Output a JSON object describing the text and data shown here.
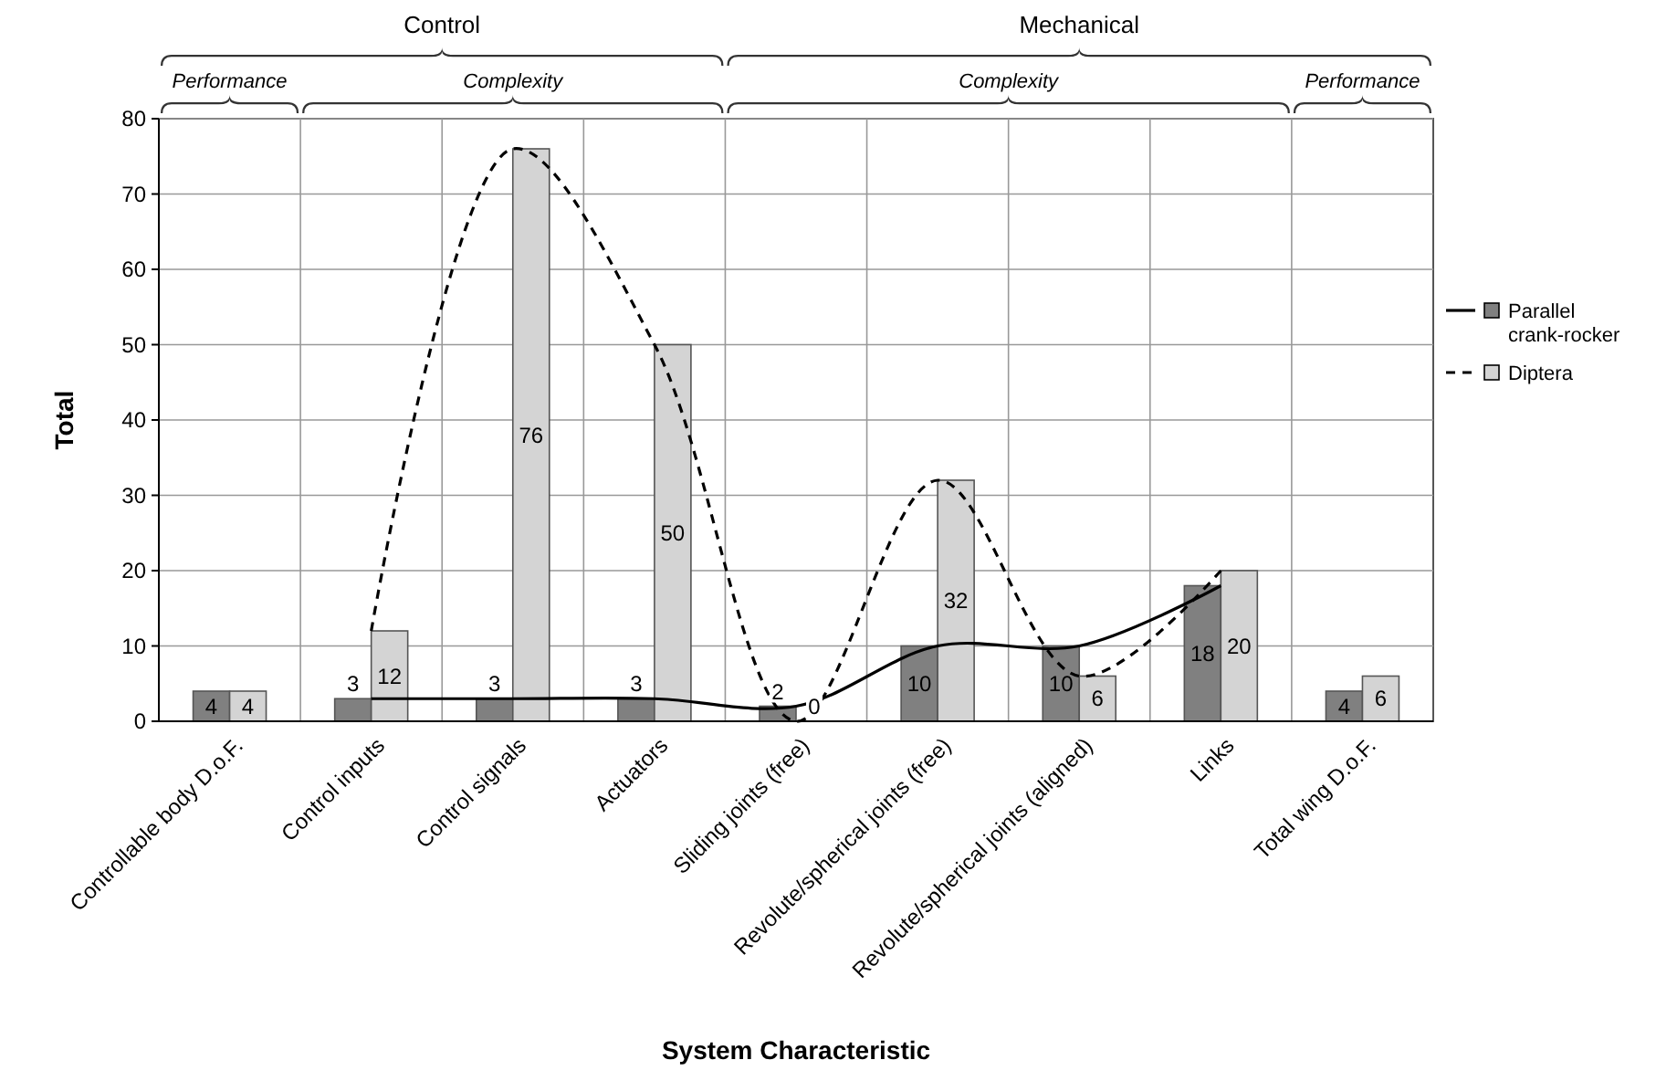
{
  "chart_data": {
    "type": "bar",
    "xlabel": "System Characteristic",
    "ylabel": "Total",
    "categories": [
      "Controllable body D.o.F.",
      "Control inputs",
      "Control signals",
      "Actuators",
      "Sliding joints (free)",
      "Revolute/spherical joints (free)",
      "Revolute/spherical joints (aligned)",
      "Links",
      "Total wing D.o.F."
    ],
    "series": [
      {
        "name": "Parallel crank-rocker",
        "color": "#808080",
        "values": [
          4,
          3,
          3,
          3,
          2,
          10,
          10,
          18,
          4
        ],
        "value_labels": [
          "4",
          "3",
          "3",
          "3",
          "2",
          "10",
          "10",
          "18",
          "4"
        ]
      },
      {
        "name": "Diptera",
        "color": "#d4d4d4",
        "values": [
          4,
          12,
          76,
          50,
          0,
          32,
          6,
          20,
          6
        ],
        "value_labels": [
          "4",
          "12",
          "76",
          "50",
          "0",
          "32",
          "6",
          "20",
          "6"
        ]
      },
      {
        "type": "line",
        "color": "#000000",
        "line_style": "solid",
        "values": [
          null,
          3,
          3,
          3,
          2,
          10,
          10,
          18,
          null
        ]
      },
      {
        "type": "line",
        "color": "#000000",
        "line_style": "dashed",
        "values": [
          null,
          12,
          76,
          50,
          0,
          32,
          6,
          20,
          null
        ]
      }
    ],
    "ylim": [
      0,
      80
    ],
    "yticks": [
      0,
      10,
      20,
      30,
      40,
      50,
      60,
      70,
      80
    ],
    "grid": true,
    "legend": "right",
    "annotations": [
      "Control",
      "Mechanical",
      "Performance",
      "Complexity",
      "Complexity",
      "Performance"
    ]
  }
}
